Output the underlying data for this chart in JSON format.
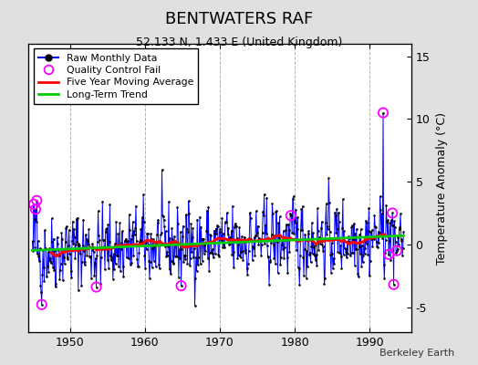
{
  "title": "BENTWATERS RAF",
  "subtitle": "52.133 N, 1.433 E (United Kingdom)",
  "ylabel": "Temperature Anomaly (°C)",
  "credit": "Berkeley Earth",
  "ylim": [
    -7,
    16
  ],
  "xlim": [
    1944.5,
    1995.5
  ],
  "yticks": [
    -5,
    0,
    5,
    10,
    15
  ],
  "xticks": [
    1950,
    1960,
    1970,
    1980,
    1990
  ],
  "bg_color": "#e0e0e0",
  "plot_bg_color": "#ffffff",
  "raw_line_color": "#0000ff",
  "raw_dot_color": "#000000",
  "moving_avg_color": "#ff0000",
  "trend_color": "#00cc00",
  "qc_fail_color": "#ff00ff",
  "seed": 42,
  "n_months": 600,
  "start_year": 1945.0,
  "end_year": 1994.5
}
